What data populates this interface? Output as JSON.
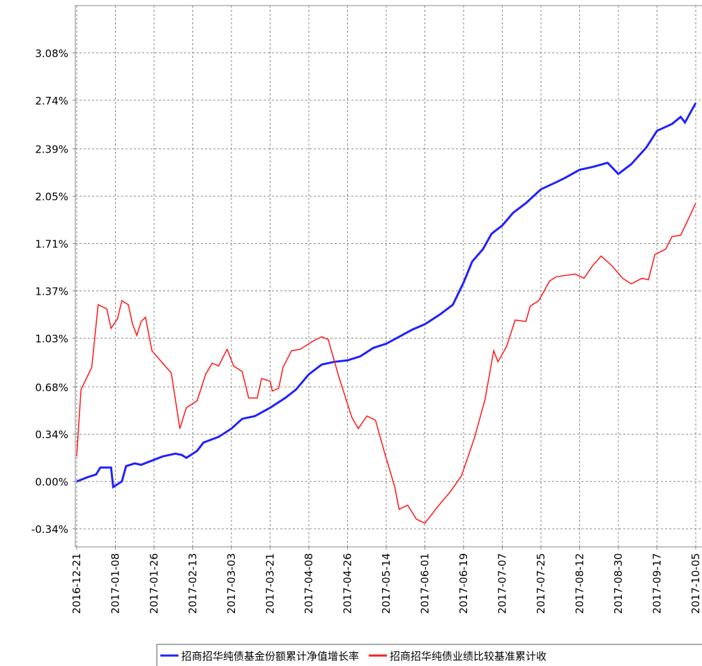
{
  "chart_data": {
    "type": "line",
    "xlim": [
      "2016-12-21",
      "2017-10-05"
    ],
    "xticks": [
      "2016-12-21",
      "2017-01-08",
      "2017-01-26",
      "2017-02-13",
      "2017-03-03",
      "2017-03-21",
      "2017-04-08",
      "2017-04-26",
      "2017-05-14",
      "2017-06-01",
      "2017-06-19",
      "2017-07-07",
      "2017-07-25",
      "2017-08-12",
      "2017-08-30",
      "2017-09-17",
      "2017-10-05"
    ],
    "ylim": [
      -0.47,
      3.42
    ],
    "yticks": [
      {
        "value": -0.34,
        "label": "-0.34%"
      },
      {
        "value": 0,
        "label": "0.00%"
      },
      {
        "value": 0.34,
        "label": "0.34%"
      },
      {
        "value": 0.68,
        "label": "0.68%"
      },
      {
        "value": 1.03,
        "label": "1.03%"
      },
      {
        "value": 1.37,
        "label": "1.37%"
      },
      {
        "value": 1.71,
        "label": "1.71%"
      },
      {
        "value": 2.05,
        "label": "2.05%"
      },
      {
        "value": 2.39,
        "label": "2.39%"
      },
      {
        "value": 2.74,
        "label": "2.74%"
      },
      {
        "value": 3.08,
        "label": "3.08%"
      }
    ],
    "grid": true,
    "legend": "bottom",
    "series": [
      {
        "name": "招商招华纯债基金份额累计净值增长率",
        "color": "#2020ff",
        "x": [
          "2016-12-21",
          "2016-12-26",
          "2016-12-30",
          "2017-01-01",
          "2017-01-06",
          "2017-01-07",
          "2017-01-11",
          "2017-01-13",
          "2017-01-17",
          "2017-01-20",
          "2017-01-25",
          "2017-01-30",
          "2017-02-05",
          "2017-02-08",
          "2017-02-10",
          "2017-02-15",
          "2017-02-18",
          "2017-02-25",
          "2017-03-03",
          "2017-03-08",
          "2017-03-14",
          "2017-03-21",
          "2017-03-28",
          "2017-04-02",
          "2017-04-08",
          "2017-04-14",
          "2017-04-20",
          "2017-04-26",
          "2017-05-02",
          "2017-05-08",
          "2017-05-14",
          "2017-05-20",
          "2017-05-26",
          "2017-06-01",
          "2017-06-08",
          "2017-06-14",
          "2017-06-19",
          "2017-06-23",
          "2017-06-28",
          "2017-07-02",
          "2017-07-07",
          "2017-07-12",
          "2017-07-18",
          "2017-07-25",
          "2017-08-01",
          "2017-08-05",
          "2017-08-12",
          "2017-08-18",
          "2017-08-25",
          "2017-08-30",
          "2017-09-05",
          "2017-09-12",
          "2017-09-17",
          "2017-09-24",
          "2017-09-28",
          "2017-09-30",
          "2017-10-05"
        ],
        "values": [
          0.0,
          0.03,
          0.05,
          0.1,
          0.1,
          -0.04,
          0.0,
          0.11,
          0.13,
          0.12,
          0.15,
          0.18,
          0.2,
          0.19,
          0.17,
          0.22,
          0.28,
          0.32,
          0.38,
          0.45,
          0.47,
          0.53,
          0.6,
          0.66,
          0.77,
          0.84,
          0.86,
          0.87,
          0.9,
          0.96,
          0.99,
          1.04,
          1.09,
          1.13,
          1.2,
          1.27,
          1.43,
          1.58,
          1.67,
          1.78,
          1.84,
          1.93,
          2.0,
          2.1,
          2.15,
          2.18,
          2.24,
          2.26,
          2.29,
          2.21,
          2.28,
          2.4,
          2.52,
          2.57,
          2.62,
          2.58,
          2.72
        ]
      },
      {
        "name": "招商招华纯债业绩比较基准累计收",
        "color": "#ff2020",
        "x": [
          "2016-12-21",
          "2016-12-23",
          "2016-12-28",
          "2016-12-31",
          "2017-01-04",
          "2017-01-06",
          "2017-01-09",
          "2017-01-11",
          "2017-01-14",
          "2017-01-16",
          "2017-01-18",
          "2017-01-20",
          "2017-01-22",
          "2017-01-25",
          "2017-01-30",
          "2017-02-03",
          "2017-02-07",
          "2017-02-10",
          "2017-02-15",
          "2017-02-19",
          "2017-02-22",
          "2017-02-25",
          "2017-03-01",
          "2017-03-04",
          "2017-03-08",
          "2017-03-11",
          "2017-03-15",
          "2017-03-17",
          "2017-03-21",
          "2017-03-22",
          "2017-03-25",
          "2017-03-27",
          "2017-03-31",
          "2017-04-04",
          "2017-04-10",
          "2017-04-14",
          "2017-04-17",
          "2017-04-22",
          "2017-04-28",
          "2017-05-01",
          "2017-05-05",
          "2017-05-09",
          "2017-05-13",
          "2017-05-18",
          "2017-05-20",
          "2017-05-24",
          "2017-05-28",
          "2017-06-01",
          "2017-06-07",
          "2017-06-13",
          "2017-06-18",
          "2017-06-24",
          "2017-06-29",
          "2017-07-03",
          "2017-07-05",
          "2017-07-09",
          "2017-07-13",
          "2017-07-18",
          "2017-07-20",
          "2017-07-24",
          "2017-07-29",
          "2017-08-01",
          "2017-08-05",
          "2017-08-10",
          "2017-08-14",
          "2017-08-18",
          "2017-08-22",
          "2017-08-27",
          "2017-09-01",
          "2017-09-05",
          "2017-09-10",
          "2017-09-13",
          "2017-09-16",
          "2017-09-21",
          "2017-09-24",
          "2017-09-28",
          "2017-10-02",
          "2017-10-05"
        ],
        "values": [
          0.18,
          0.66,
          0.82,
          1.27,
          1.24,
          1.1,
          1.17,
          1.3,
          1.27,
          1.13,
          1.05,
          1.15,
          1.18,
          0.94,
          0.85,
          0.78,
          0.38,
          0.53,
          0.58,
          0.77,
          0.85,
          0.83,
          0.95,
          0.83,
          0.79,
          0.6,
          0.6,
          0.74,
          0.72,
          0.65,
          0.67,
          0.82,
          0.94,
          0.95,
          1.01,
          1.04,
          1.02,
          0.75,
          0.46,
          0.38,
          0.47,
          0.44,
          0.22,
          -0.04,
          -0.2,
          -0.17,
          -0.27,
          -0.3,
          -0.18,
          -0.07,
          0.04,
          0.31,
          0.59,
          0.94,
          0.86,
          0.97,
          1.16,
          1.15,
          1.26,
          1.3,
          1.44,
          1.47,
          1.48,
          1.49,
          1.46,
          1.55,
          1.62,
          1.55,
          1.46,
          1.42,
          1.46,
          1.45,
          1.63,
          1.67,
          1.76,
          1.77,
          1.9,
          2.0
        ]
      }
    ]
  }
}
